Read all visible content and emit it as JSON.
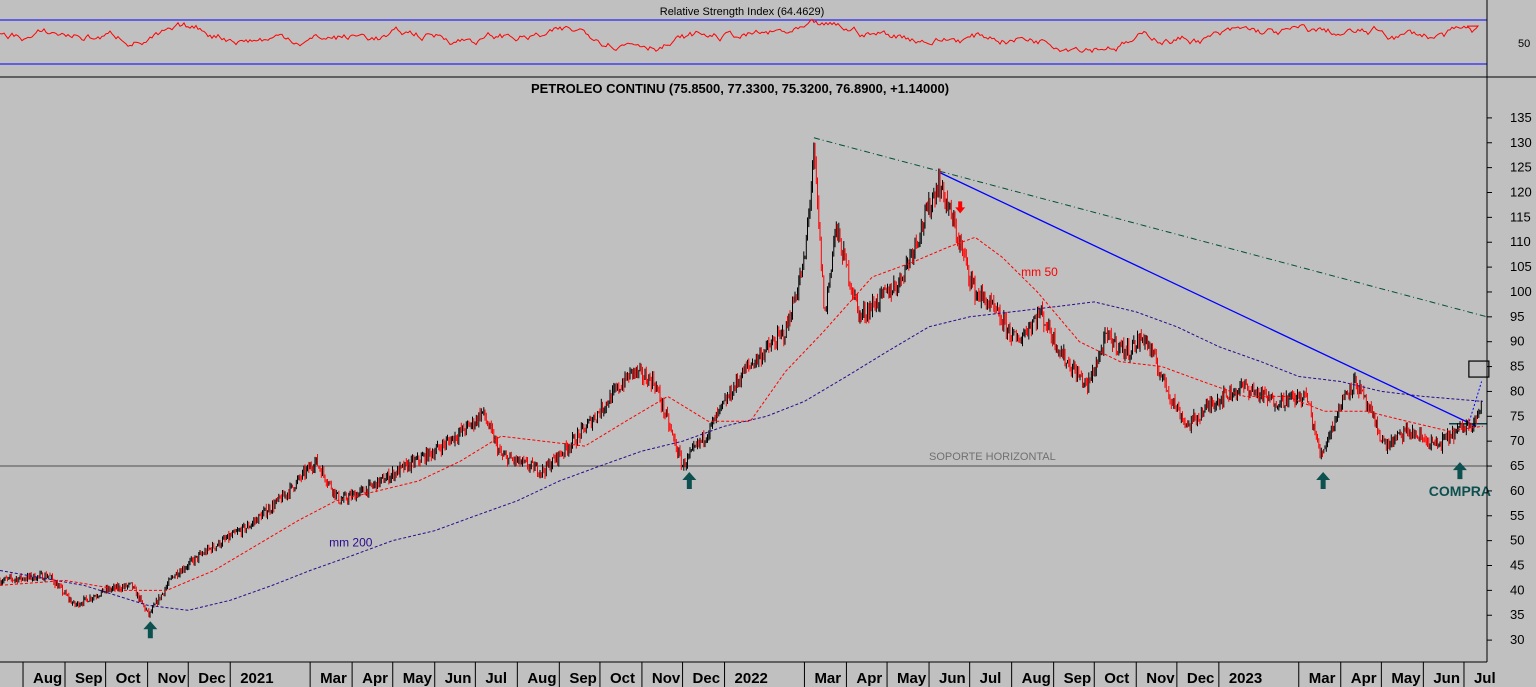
{
  "colors": {
    "background": "#c0c0c0",
    "candles": "#000000",
    "down_candles": "#ff0000",
    "ma50": "#ff0000",
    "ma200": "#2a0a8c",
    "trendline": "#0000ff",
    "long_trendline": "#005030",
    "arrows": "#0d5050",
    "rsi_line": "#ff0000",
    "rsi_bounds": "#0000ff",
    "support": "#505050"
  },
  "rsi_panel": {
    "title": "Relative Strength Index (64.4629)",
    "tick_label": "50"
  },
  "chart_data": {
    "type": "candlestick",
    "title": "PETROLEO CONTINU (75.8500, 77.3300, 75.3200, 76.8900, +1.14000)",
    "xlabel": "",
    "ylabel": "",
    "ylim": [
      26,
      139
    ],
    "y_ticks": [
      30,
      35,
      40,
      45,
      50,
      55,
      60,
      65,
      70,
      75,
      80,
      85,
      90,
      95,
      100,
      105,
      110,
      115,
      120,
      125,
      130,
      135
    ],
    "x_labels": [
      "Aug",
      "Sep",
      "Oct",
      "Nov",
      "Dec",
      "2021",
      "Mar",
      "Apr",
      "May",
      "Jun",
      "Jul",
      "Aug",
      "Sep",
      "Oct",
      "Nov",
      "Dec",
      "2022",
      "Mar",
      "Apr",
      "May",
      "Jun",
      "Jul",
      "Aug",
      "Sep",
      "Oct",
      "Nov",
      "Dec",
      "2023",
      "Mar",
      "Apr",
      "May",
      "Jun",
      "Jul"
    ],
    "x_range": [
      "2020-07-15",
      "2023-07-18"
    ],
    "price_series": {
      "name": "",
      "points": [
        [
          "2020-07-15",
          42
        ],
        [
          "2020-08-20",
          43
        ],
        [
          "2020-09-08",
          37
        ],
        [
          "2020-10-01",
          40
        ],
        [
          "2020-10-20",
          41
        ],
        [
          "2020-11-02",
          35
        ],
        [
          "2020-11-20",
          43
        ],
        [
          "2020-12-15",
          48
        ],
        [
          "2021-01-15",
          53
        ],
        [
          "2021-02-10",
          59
        ],
        [
          "2021-03-05",
          66
        ],
        [
          "2021-03-23",
          58
        ],
        [
          "2021-04-10",
          60
        ],
        [
          "2021-05-05",
          64
        ],
        [
          "2021-06-01",
          68
        ],
        [
          "2021-07-01",
          74
        ],
        [
          "2021-07-06",
          76
        ],
        [
          "2021-07-20",
          67
        ],
        [
          "2021-08-20",
          64
        ],
        [
          "2021-09-15",
          71
        ],
        [
          "2021-10-25",
          84
        ],
        [
          "2021-11-10",
          82
        ],
        [
          "2021-12-01",
          65
        ],
        [
          "2021-12-20",
          72
        ],
        [
          "2022-01-15",
          84
        ],
        [
          "2022-02-15",
          92
        ],
        [
          "2022-03-01",
          106
        ],
        [
          "2022-03-08",
          128
        ],
        [
          "2022-03-16",
          95
        ],
        [
          "2022-03-24",
          113
        ],
        [
          "2022-04-11",
          95
        ],
        [
          "2022-05-10",
          102
        ],
        [
          "2022-05-25",
          112
        ],
        [
          "2022-06-08",
          122
        ],
        [
          "2022-06-14",
          118
        ],
        [
          "2022-07-05",
          100
        ],
        [
          "2022-07-14",
          98
        ],
        [
          "2022-08-05",
          90
        ],
        [
          "2022-08-22",
          96
        ],
        [
          "2022-09-08",
          87
        ],
        [
          "2022-09-26",
          81
        ],
        [
          "2022-10-10",
          91
        ],
        [
          "2022-10-25",
          88
        ],
        [
          "2022-11-07",
          91
        ],
        [
          "2022-11-28",
          78
        ],
        [
          "2022-12-09",
          73
        ],
        [
          "2022-12-28",
          78
        ],
        [
          "2023-01-20",
          81
        ],
        [
          "2023-02-10",
          78
        ],
        [
          "2023-03-07",
          79
        ],
        [
          "2023-03-17",
          67
        ],
        [
          "2023-04-05",
          80
        ],
        [
          "2023-04-12",
          82
        ],
        [
          "2023-05-04",
          69
        ],
        [
          "2023-05-20",
          72
        ],
        [
          "2023-06-12",
          69
        ],
        [
          "2023-06-20",
          71
        ],
        [
          "2023-07-07",
          73.9
        ],
        [
          "2023-07-14",
          76.9
        ]
      ]
    },
    "moving_averages": [
      {
        "name": "mm 50",
        "points": [
          [
            "2020-07-15",
            41
          ],
          [
            "2020-09-01",
            42
          ],
          [
            "2020-10-15",
            40
          ],
          [
            "2020-11-15",
            40
          ],
          [
            "2020-12-20",
            44
          ],
          [
            "2021-01-20",
            49
          ],
          [
            "2021-02-20",
            54
          ],
          [
            "2021-03-20",
            58
          ],
          [
            "2021-04-20",
            60
          ],
          [
            "2021-05-20",
            62
          ],
          [
            "2021-06-20",
            66
          ],
          [
            "2021-07-20",
            71
          ],
          [
            "2021-08-20",
            70
          ],
          [
            "2021-09-20",
            69
          ],
          [
            "2021-10-20",
            74
          ],
          [
            "2021-11-20",
            79
          ],
          [
            "2021-12-20",
            74
          ],
          [
            "2022-01-20",
            74
          ],
          [
            "2022-02-15",
            84
          ],
          [
            "2022-03-15",
            92
          ],
          [
            "2022-04-20",
            103
          ],
          [
            "2022-05-20",
            106
          ],
          [
            "2022-06-15",
            109
          ],
          [
            "2022-07-05",
            111
          ],
          [
            "2022-07-25",
            107
          ],
          [
            "2022-08-20",
            100
          ],
          [
            "2022-09-20",
            90
          ],
          [
            "2022-10-20",
            86
          ],
          [
            "2022-11-20",
            85
          ],
          [
            "2022-12-20",
            82
          ],
          [
            "2023-01-20",
            79
          ],
          [
            "2023-02-20",
            79
          ],
          [
            "2023-03-20",
            76
          ],
          [
            "2023-04-20",
            76
          ],
          [
            "2023-05-20",
            74
          ],
          [
            "2023-06-20",
            72
          ],
          [
            "2023-07-15",
            73
          ]
        ]
      },
      {
        "name": "mm 200",
        "points": [
          [
            "2020-07-15",
            44
          ],
          [
            "2020-09-15",
            41
          ],
          [
            "2020-11-01",
            37
          ],
          [
            "2020-12-01",
            36
          ],
          [
            "2021-01-01",
            38
          ],
          [
            "2021-02-01",
            41
          ],
          [
            "2021-03-01",
            44
          ],
          [
            "2021-04-01",
            47
          ],
          [
            "2021-05-01",
            50
          ],
          [
            "2021-06-01",
            52
          ],
          [
            "2021-07-01",
            55
          ],
          [
            "2021-08-01",
            58
          ],
          [
            "2021-09-01",
            62
          ],
          [
            "2021-10-01",
            65
          ],
          [
            "2021-11-01",
            68
          ],
          [
            "2021-12-01",
            70
          ],
          [
            "2022-01-01",
            73
          ],
          [
            "2022-02-01",
            75
          ],
          [
            "2022-03-01",
            78
          ],
          [
            "2022-04-01",
            83
          ],
          [
            "2022-05-01",
            88
          ],
          [
            "2022-06-01",
            93
          ],
          [
            "2022-07-01",
            95
          ],
          [
            "2022-08-01",
            96
          ],
          [
            "2022-09-01",
            97
          ],
          [
            "2022-10-01",
            98
          ],
          [
            "2022-11-01",
            96
          ],
          [
            "2022-12-01",
            93
          ],
          [
            "2023-01-01",
            89
          ],
          [
            "2023-02-01",
            86
          ],
          [
            "2023-03-01",
            83
          ],
          [
            "2023-04-01",
            82
          ],
          [
            "2023-05-01",
            80
          ],
          [
            "2023-06-01",
            79
          ],
          [
            "2023-07-15",
            78
          ]
        ]
      }
    ],
    "support_level": {
      "value": 65,
      "label": "SOPORTE HORIZONTAL"
    },
    "trendlines": [
      {
        "kind": "long-resistance",
        "from": [
          "2022-03-08",
          131
        ],
        "to": [
          "2023-07-18",
          95
        ]
      },
      {
        "kind": "resistance",
        "from": [
          "2022-06-09",
          124
        ],
        "to": [
          "2023-07-10",
          73
        ]
      },
      {
        "kind": "projection",
        "from": [
          "2023-07-05",
          74
        ],
        "to": [
          "2023-07-14",
          82
        ]
      }
    ],
    "breakout_level": {
      "value": 73.5,
      "from": "2023-06-20",
      "to": "2023-07-18"
    },
    "target_box": {
      "date": "2023-07-12",
      "value": 84.5
    },
    "buy_signals": [
      {
        "date": "2020-11-03",
        "value": 35,
        "label": ""
      },
      {
        "date": "2021-12-06",
        "value": 65,
        "label": ""
      },
      {
        "date": "2023-03-19",
        "value": 65,
        "label": ""
      },
      {
        "date": "2023-06-28",
        "value": 67,
        "label": "COMPRA"
      }
    ],
    "sell_signals": [
      {
        "date": "2022-06-24",
        "value": 115
      }
    ],
    "rsi": {
      "value": 64.4629,
      "range": [
        0,
        100
      ],
      "upper": 70,
      "lower": 30,
      "reference_tick": 50
    }
  }
}
